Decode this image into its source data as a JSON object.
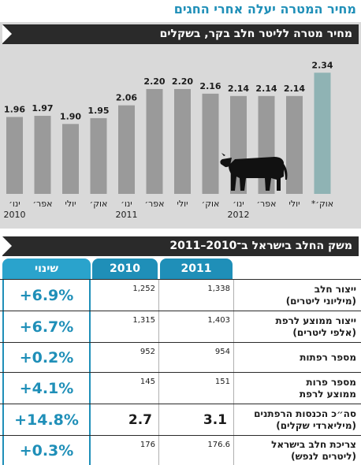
{
  "headline": "מחיר המטרה יעלה אחרי החגים",
  "chart_section_title": "מחיר מטרה לליטר חלב בקר, בשקלים",
  "table_section_title": "משק החלב בישראל ב־2010–2011",
  "colors": {
    "accent": "#1f8fb8",
    "bar": "#9a9a9a",
    "bar_highlight": "#8fb3b4",
    "panel": "#d9d9d9",
    "dark": "#2a2a2a"
  },
  "chart_data": {
    "type": "bar",
    "title": "מחיר מטרה לליטר חלב בקר, בשקלים",
    "categories": [
      "ינו׳",
      "אפר׳",
      "יולי",
      "אוק׳",
      "ינו׳",
      "אפר׳",
      "יולי",
      "אוק׳",
      "ינו׳",
      "אפר׳",
      "יולי",
      "אוק׳*"
    ],
    "values": [
      1.96,
      1.97,
      1.9,
      1.95,
      2.06,
      2.2,
      2.2,
      2.16,
      2.14,
      2.14,
      2.14,
      2.34
    ],
    "value_labels": [
      "1.96",
      "1.97",
      "1.90",
      "1.95",
      "2.06",
      "2.20",
      "2.20",
      "2.16",
      "2.14",
      "2.14",
      "2.14",
      "2.34"
    ],
    "year_labels": [
      {
        "index": 0,
        "label": "2010"
      },
      {
        "index": 4,
        "label": "2011"
      },
      {
        "index": 8,
        "label": "2012"
      }
    ],
    "highlight_index": 11,
    "ylim": [
      1.3,
      2.45
    ],
    "grid": false,
    "bar_order": "left-to-right",
    "decoration": "cow-icon"
  },
  "table": {
    "headers": {
      "change": "שינוי",
      "y2010": "2010",
      "y2011": "2011"
    },
    "rows": [
      {
        "label": "ייצור חלב",
        "sub": "(מיליוני ליטרים)",
        "y2011": "1,338",
        "y2010": "1,252",
        "change": "+6.9%",
        "emphasis": false
      },
      {
        "label": "ייצור ממוצע לרפת",
        "sub": "(אלפי ליטרים)",
        "y2011": "1,403",
        "y2010": "1,315",
        "change": "+6.7%",
        "emphasis": false
      },
      {
        "label": "מספר רפתות",
        "sub": "",
        "y2011": "954",
        "y2010": "952",
        "change": "+0.2%",
        "emphasis": false
      },
      {
        "label": "מספר פרות",
        "sub": "ממוצע לרפת",
        "y2011": "151",
        "y2010": "145",
        "change": "+4.1%",
        "emphasis": false
      },
      {
        "label": "סה״כ הכנסות הרפתנים",
        "sub": "(מיליארדי שקלים)",
        "y2011": "3.1",
        "y2010": "2.7",
        "change": "+14.8%",
        "emphasis": true
      },
      {
        "label": "צריכת חלב בישראל",
        "sub": "(ליטרים לנפש)",
        "y2011": "176.6",
        "y2010": "176",
        "change": "+0.3%",
        "emphasis": false
      }
    ]
  }
}
